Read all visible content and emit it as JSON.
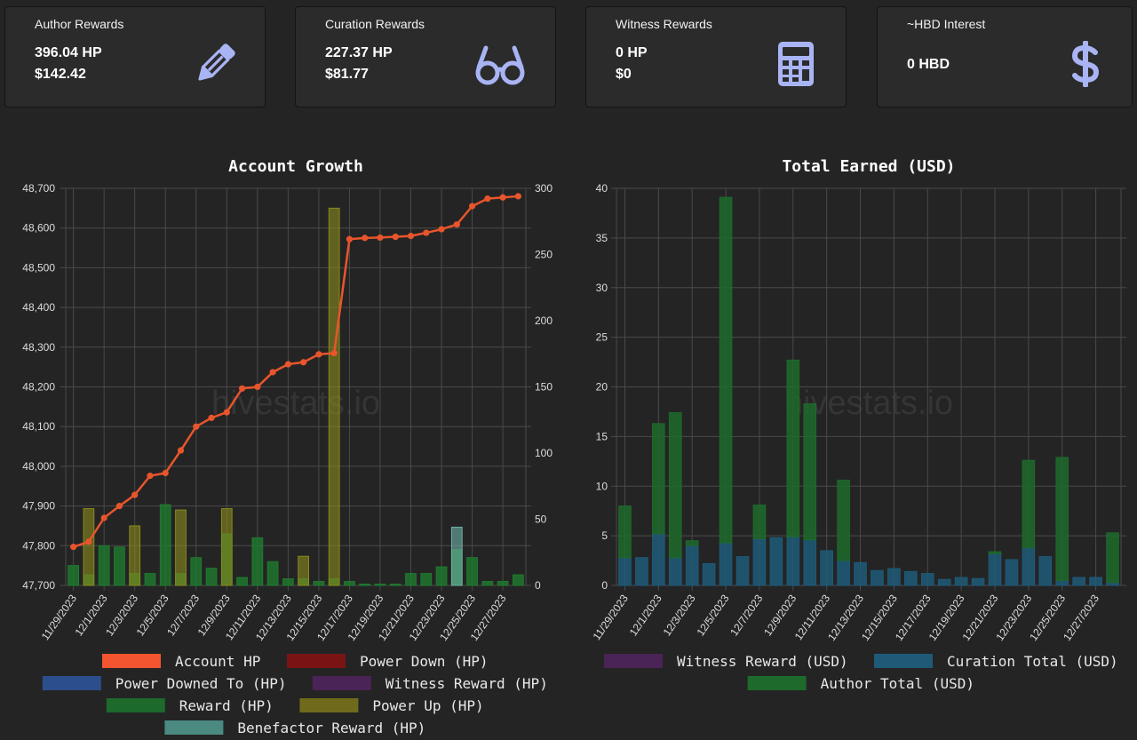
{
  "cards": [
    {
      "title": "Author Rewards",
      "line1": "396.04 HP",
      "line2": "$142.42",
      "icon": "pencil-icon"
    },
    {
      "title": "Curation Rewards",
      "line1": "227.37 HP",
      "line2": "$81.77",
      "icon": "glasses-icon"
    },
    {
      "title": "Witness Rewards",
      "line1": "0 HP",
      "line2": "$0",
      "icon": "calculator-icon"
    },
    {
      "title": "~HBD Interest",
      "line1": "0 HBD",
      "icon": "dollar-icon"
    }
  ],
  "colors": {
    "accent_icon": "#a9b4f5",
    "grid": "#4a4a4a",
    "text": "#dddddd"
  },
  "watermark": "hivestats.io",
  "chart_data": [
    {
      "type": "bar",
      "title": "Account Growth",
      "categories": [
        "11/29/2023",
        "11/30/2023",
        "12/1/2023",
        "12/2/2023",
        "12/3/2023",
        "12/4/2023",
        "12/5/2023",
        "12/6/2023",
        "12/7/2023",
        "12/8/2023",
        "12/9/2023",
        "12/10/2023",
        "12/11/2023",
        "12/12/2023",
        "12/13/2023",
        "12/14/2023",
        "12/15/2023",
        "12/16/2023",
        "12/17/2023",
        "12/18/2023",
        "12/19/2023",
        "12/20/2023",
        "12/21/2023",
        "12/22/2023",
        "12/23/2023",
        "12/24/2023",
        "12/25/2023",
        "12/26/2023",
        "12/27/2023",
        "12/28/2023"
      ],
      "x_tick_labels": [
        "11/29/2023",
        "12/1/2023",
        "12/3/2023",
        "12/5/2023",
        "12/7/2023",
        "12/9/2023",
        "12/11/2023",
        "12/13/2023",
        "12/15/2023",
        "12/17/2023",
        "12/19/2023",
        "12/21/2023",
        "12/23/2023",
        "12/25/2023",
        "12/27/2023"
      ],
      "y_left": {
        "ylim": [
          47700,
          48700
        ],
        "ticks": [
          "47,700",
          "47,800",
          "47,900",
          "48,000",
          "48,100",
          "48,200",
          "48,300",
          "48,400",
          "48,500",
          "48,600",
          "48,700"
        ]
      },
      "y_right": {
        "ylim": [
          0,
          300
        ],
        "ticks": [
          "0",
          "50",
          "100",
          "150",
          "200",
          "250",
          "300"
        ]
      },
      "line_series": {
        "name": "Account HP",
        "color": "#e8552c",
        "axis": "left",
        "values": [
          47797,
          47810,
          47870,
          47900,
          47928,
          47976,
          47983,
          48040,
          48100,
          48122,
          48136,
          48196,
          48200,
          48237,
          48257,
          48262,
          48282,
          48285,
          48572,
          48575,
          48576,
          48578,
          48580,
          48588,
          48597,
          48609,
          48655,
          48674,
          48677,
          48680
        ]
      },
      "bar_series": [
        {
          "name": "Reward (HP)",
          "color": "#1f7a2e",
          "opacity": 0.8,
          "axis": "right",
          "values": [
            15,
            8,
            30,
            29,
            9,
            9,
            61,
            9,
            21,
            13,
            39,
            6,
            36,
            18,
            5,
            5,
            3,
            5,
            3,
            1,
            1,
            1,
            9,
            9,
            14,
            27,
            21,
            3,
            3,
            8
          ]
        },
        {
          "name": "Power Up (HP)",
          "color": "#8a8a1e",
          "opacity": 0.6,
          "axis": "right",
          "values": [
            0,
            58,
            0,
            0,
            45,
            0,
            0,
            57,
            0,
            0,
            58,
            0,
            0,
            0,
            0,
            22,
            0,
            285,
            0,
            0,
            0,
            0,
            0,
            0,
            0,
            0,
            0,
            0,
            0,
            0
          ]
        },
        {
          "name": "Benefactor Reward (HP)",
          "color": "#6fb3a8",
          "opacity": 0.6,
          "axis": "right",
          "values": [
            0,
            0,
            0,
            0,
            0,
            0,
            0,
            0,
            0,
            0,
            0,
            0,
            0,
            0,
            0,
            0,
            0,
            0,
            0,
            0,
            0,
            0,
            0,
            0,
            0,
            44,
            0,
            0,
            0,
            0
          ]
        }
      ],
      "legend": [
        {
          "label": "Account HP",
          "color": "#f25530"
        },
        {
          "label": "Power Down (HP)",
          "color": "#7a1414"
        },
        {
          "label": "Power Downed To (HP)",
          "color": "#2d4e8c"
        },
        {
          "label": "Witness Reward (HP)",
          "color": "#4a2456"
        },
        {
          "label": "Reward (HP)",
          "color": "#1d6a2c"
        },
        {
          "label": "Power Up (HP)",
          "color": "#706a1c"
        },
        {
          "label": "Benefactor Reward (HP)",
          "color": "#4a8a80"
        }
      ],
      "legend_placement": "bottom",
      "grid": true
    },
    {
      "type": "bar",
      "stacked": true,
      "title": "Total Earned (USD)",
      "categories": [
        "11/29/2023",
        "11/30/2023",
        "12/1/2023",
        "12/2/2023",
        "12/3/2023",
        "12/4/2023",
        "12/5/2023",
        "12/6/2023",
        "12/7/2023",
        "12/8/2023",
        "12/9/2023",
        "12/10/2023",
        "12/11/2023",
        "12/12/2023",
        "12/13/2023",
        "12/14/2023",
        "12/15/2023",
        "12/16/2023",
        "12/17/2023",
        "12/18/2023",
        "12/19/2023",
        "12/20/2023",
        "12/21/2023",
        "12/22/2023",
        "12/23/2023",
        "12/24/2023",
        "12/25/2023",
        "12/26/2023",
        "12/27/2023",
        "12/28/2023"
      ],
      "x_tick_labels": [
        "11/29/2023",
        "12/1/2023",
        "12/3/2023",
        "12/5/2023",
        "12/7/2023",
        "12/9/2023",
        "12/11/2023",
        "12/13/2023",
        "12/15/2023",
        "12/17/2023",
        "12/19/2023",
        "12/21/2023",
        "12/23/2023",
        "12/25/2023",
        "12/27/2023"
      ],
      "y": {
        "ylim": [
          0,
          40
        ],
        "ticks": [
          "0",
          "5",
          "10",
          "15",
          "20",
          "25",
          "30",
          "35",
          "40"
        ]
      },
      "series": [
        {
          "name": "Witness Reward (USD)",
          "color": "#4a2456",
          "values": [
            0,
            0,
            0,
            0,
            0,
            0,
            0,
            0,
            0,
            0,
            0,
            0,
            0,
            0,
            0,
            0,
            0,
            0,
            0,
            0,
            0,
            0,
            0,
            0,
            0,
            0,
            0,
            0,
            0,
            0
          ]
        },
        {
          "name": "Curation Total (USD)",
          "color": "#1e5a78",
          "values": [
            2.8,
            2.8,
            5.2,
            2.8,
            4.0,
            2.2,
            4.3,
            2.9,
            4.7,
            4.8,
            4.9,
            4.6,
            3.5,
            2.5,
            2.3,
            1.5,
            1.7,
            1.4,
            1.2,
            0.6,
            0.8,
            0.7,
            3.2,
            2.6,
            3.8,
            2.9,
            0.5,
            0.8,
            0.8,
            0.3
          ]
        },
        {
          "name": "Author Total (USD)",
          "color": "#1d6a2c",
          "values": [
            5.2,
            0,
            11.1,
            14.6,
            0.5,
            0,
            34.8,
            0,
            3.4,
            0,
            17.8,
            13.7,
            0,
            8.1,
            0,
            0,
            0,
            0,
            0,
            0,
            0,
            0,
            0.2,
            0,
            8.8,
            0,
            12.4,
            0,
            0,
            5.0
          ]
        }
      ],
      "legend": [
        {
          "label": "Witness Reward (USD)",
          "color": "#4a2456"
        },
        {
          "label": "Curation Total (USD)",
          "color": "#1e5a78"
        },
        {
          "label": "Author Total (USD)",
          "color": "#1d6a2c"
        }
      ],
      "legend_placement": "bottom",
      "grid": true
    }
  ]
}
